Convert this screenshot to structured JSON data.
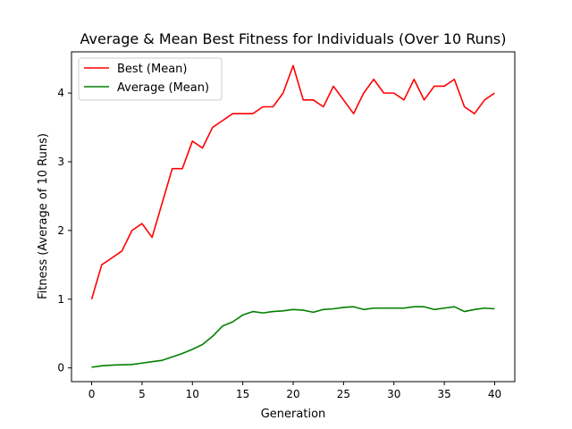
{
  "chart_data": {
    "type": "line",
    "title": "Average & Mean Best Fitness for Individuals (Over 10 Runs)",
    "xlabel": "Generation",
    "ylabel": "Fitness (Average of 10 Runs)",
    "xlim": [
      -2,
      42
    ],
    "ylim": [
      -0.2,
      4.6
    ],
    "x_ticks": [
      0,
      5,
      10,
      15,
      20,
      25,
      30,
      35,
      40
    ],
    "y_ticks": [
      0,
      1,
      2,
      3,
      4
    ],
    "grid": false,
    "legend_position": "upper-left",
    "x": [
      0,
      1,
      2,
      3,
      4,
      5,
      6,
      7,
      8,
      9,
      10,
      11,
      12,
      13,
      14,
      15,
      16,
      17,
      18,
      19,
      20,
      21,
      22,
      23,
      24,
      25,
      26,
      27,
      28,
      29,
      30,
      31,
      32,
      33,
      34,
      35,
      36,
      37,
      38,
      39,
      40
    ],
    "series": [
      {
        "name": "Best (Mean)",
        "color": "#ff0000",
        "values": [
          1.0,
          1.5,
          1.6,
          1.7,
          2.0,
          2.1,
          1.9,
          2.4,
          2.9,
          2.9,
          3.3,
          3.2,
          3.5,
          3.6,
          3.7,
          3.7,
          3.7,
          3.8,
          3.8,
          4.0,
          4.4,
          3.9,
          3.9,
          3.8,
          4.1,
          3.9,
          3.7,
          4.0,
          4.2,
          4.0,
          4.0,
          3.9,
          4.2,
          3.9,
          4.1,
          4.1,
          4.2,
          3.8,
          3.7,
          3.9,
          4.0
        ]
      },
      {
        "name": "Average (Mean)",
        "color": "#008000",
        "values": [
          0.01,
          0.03,
          0.04,
          0.045,
          0.05,
          0.07,
          0.09,
          0.11,
          0.16,
          0.21,
          0.27,
          0.34,
          0.46,
          0.61,
          0.67,
          0.77,
          0.82,
          0.8,
          0.82,
          0.83,
          0.85,
          0.84,
          0.81,
          0.85,
          0.86,
          0.88,
          0.89,
          0.85,
          0.87,
          0.87,
          0.87,
          0.87,
          0.89,
          0.89,
          0.85,
          0.87,
          0.89,
          0.82,
          0.85,
          0.87,
          0.86
        ]
      }
    ]
  }
}
